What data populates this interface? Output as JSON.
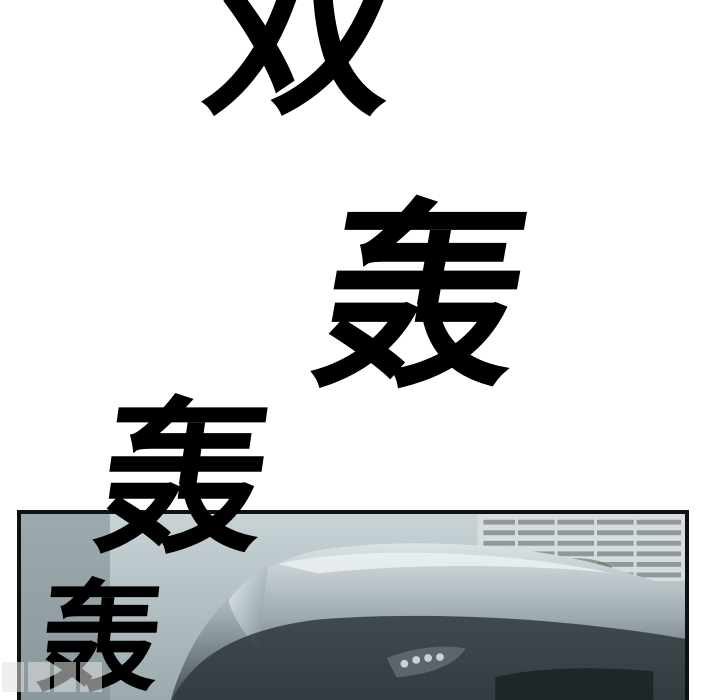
{
  "sound_effects": {
    "sfx_1": "双",
    "sfx_2": "轰",
    "sfx_3": "轰",
    "sfx_4": "轰"
  },
  "colors": {
    "ink": "#000000",
    "background": "#ffffff",
    "panel_border": "#111111"
  }
}
